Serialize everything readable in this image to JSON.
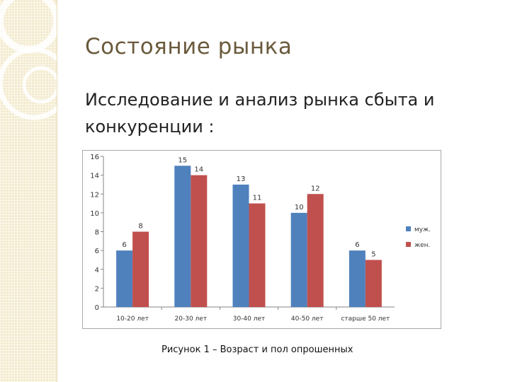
{
  "slide": {
    "title": "Состояние рынка",
    "subtitle": "Исследование и анализ рынка сбыта и конкуренции :",
    "caption": "Рисунок 1 – Возраст и пол опрошенных"
  },
  "colors": {
    "title": "#6a5a3c",
    "series_male": "#4f81bd",
    "series_female": "#c0504d",
    "axis": "#868686"
  },
  "chart_data": {
    "type": "bar",
    "categories": [
      "10-20 лет",
      "20-30 лет",
      "30-40 лет",
      "40-50 лет",
      "старше 50 лет"
    ],
    "series": [
      {
        "name": "муж.",
        "values": [
          6,
          15,
          13,
          10,
          6
        ],
        "color": "#4f81bd"
      },
      {
        "name": "жен.",
        "values": [
          8,
          14,
          11,
          12,
          5
        ],
        "color": "#c0504d"
      }
    ],
    "yticks": [
      0,
      2,
      4,
      6,
      8,
      10,
      12,
      14,
      16
    ],
    "ylim": [
      0,
      16
    ],
    "grid": false,
    "legend": "right",
    "data_labels": true
  }
}
